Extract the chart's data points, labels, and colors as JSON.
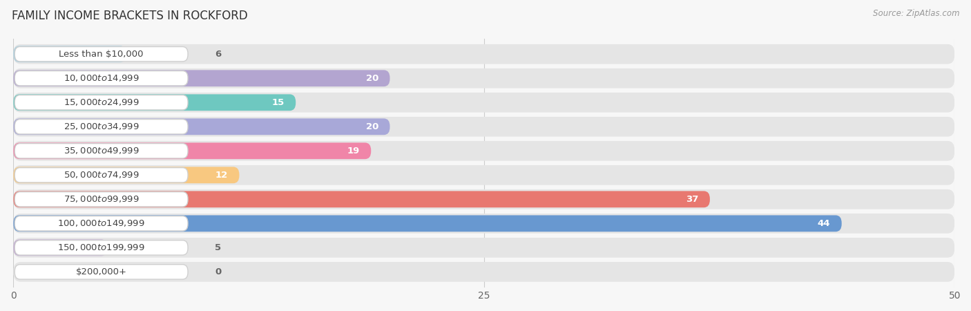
{
  "title": "FAMILY INCOME BRACKETS IN ROCKFORD",
  "source": "Source: ZipAtlas.com",
  "categories": [
    "Less than $10,000",
    "$10,000 to $14,999",
    "$15,000 to $24,999",
    "$25,000 to $34,999",
    "$35,000 to $49,999",
    "$50,000 to $74,999",
    "$75,000 to $99,999",
    "$100,000 to $149,999",
    "$150,000 to $199,999",
    "$200,000+"
  ],
  "values": [
    6,
    20,
    15,
    20,
    19,
    12,
    37,
    44,
    5,
    0
  ],
  "bar_colors": [
    "#a8cfe0",
    "#b3a5d0",
    "#6ec8c0",
    "#a8a8d8",
    "#f085a8",
    "#f8c880",
    "#e87870",
    "#6898d0",
    "#c0a8d0",
    "#80c8c8"
  ],
  "xlim": [
    0,
    50
  ],
  "xticks": [
    0,
    25,
    50
  ],
  "background_color": "#f7f7f7",
  "bar_bg_color": "#e5e5e5",
  "title_fontsize": 12,
  "label_fontsize": 9.5,
  "value_fontsize": 9.5
}
